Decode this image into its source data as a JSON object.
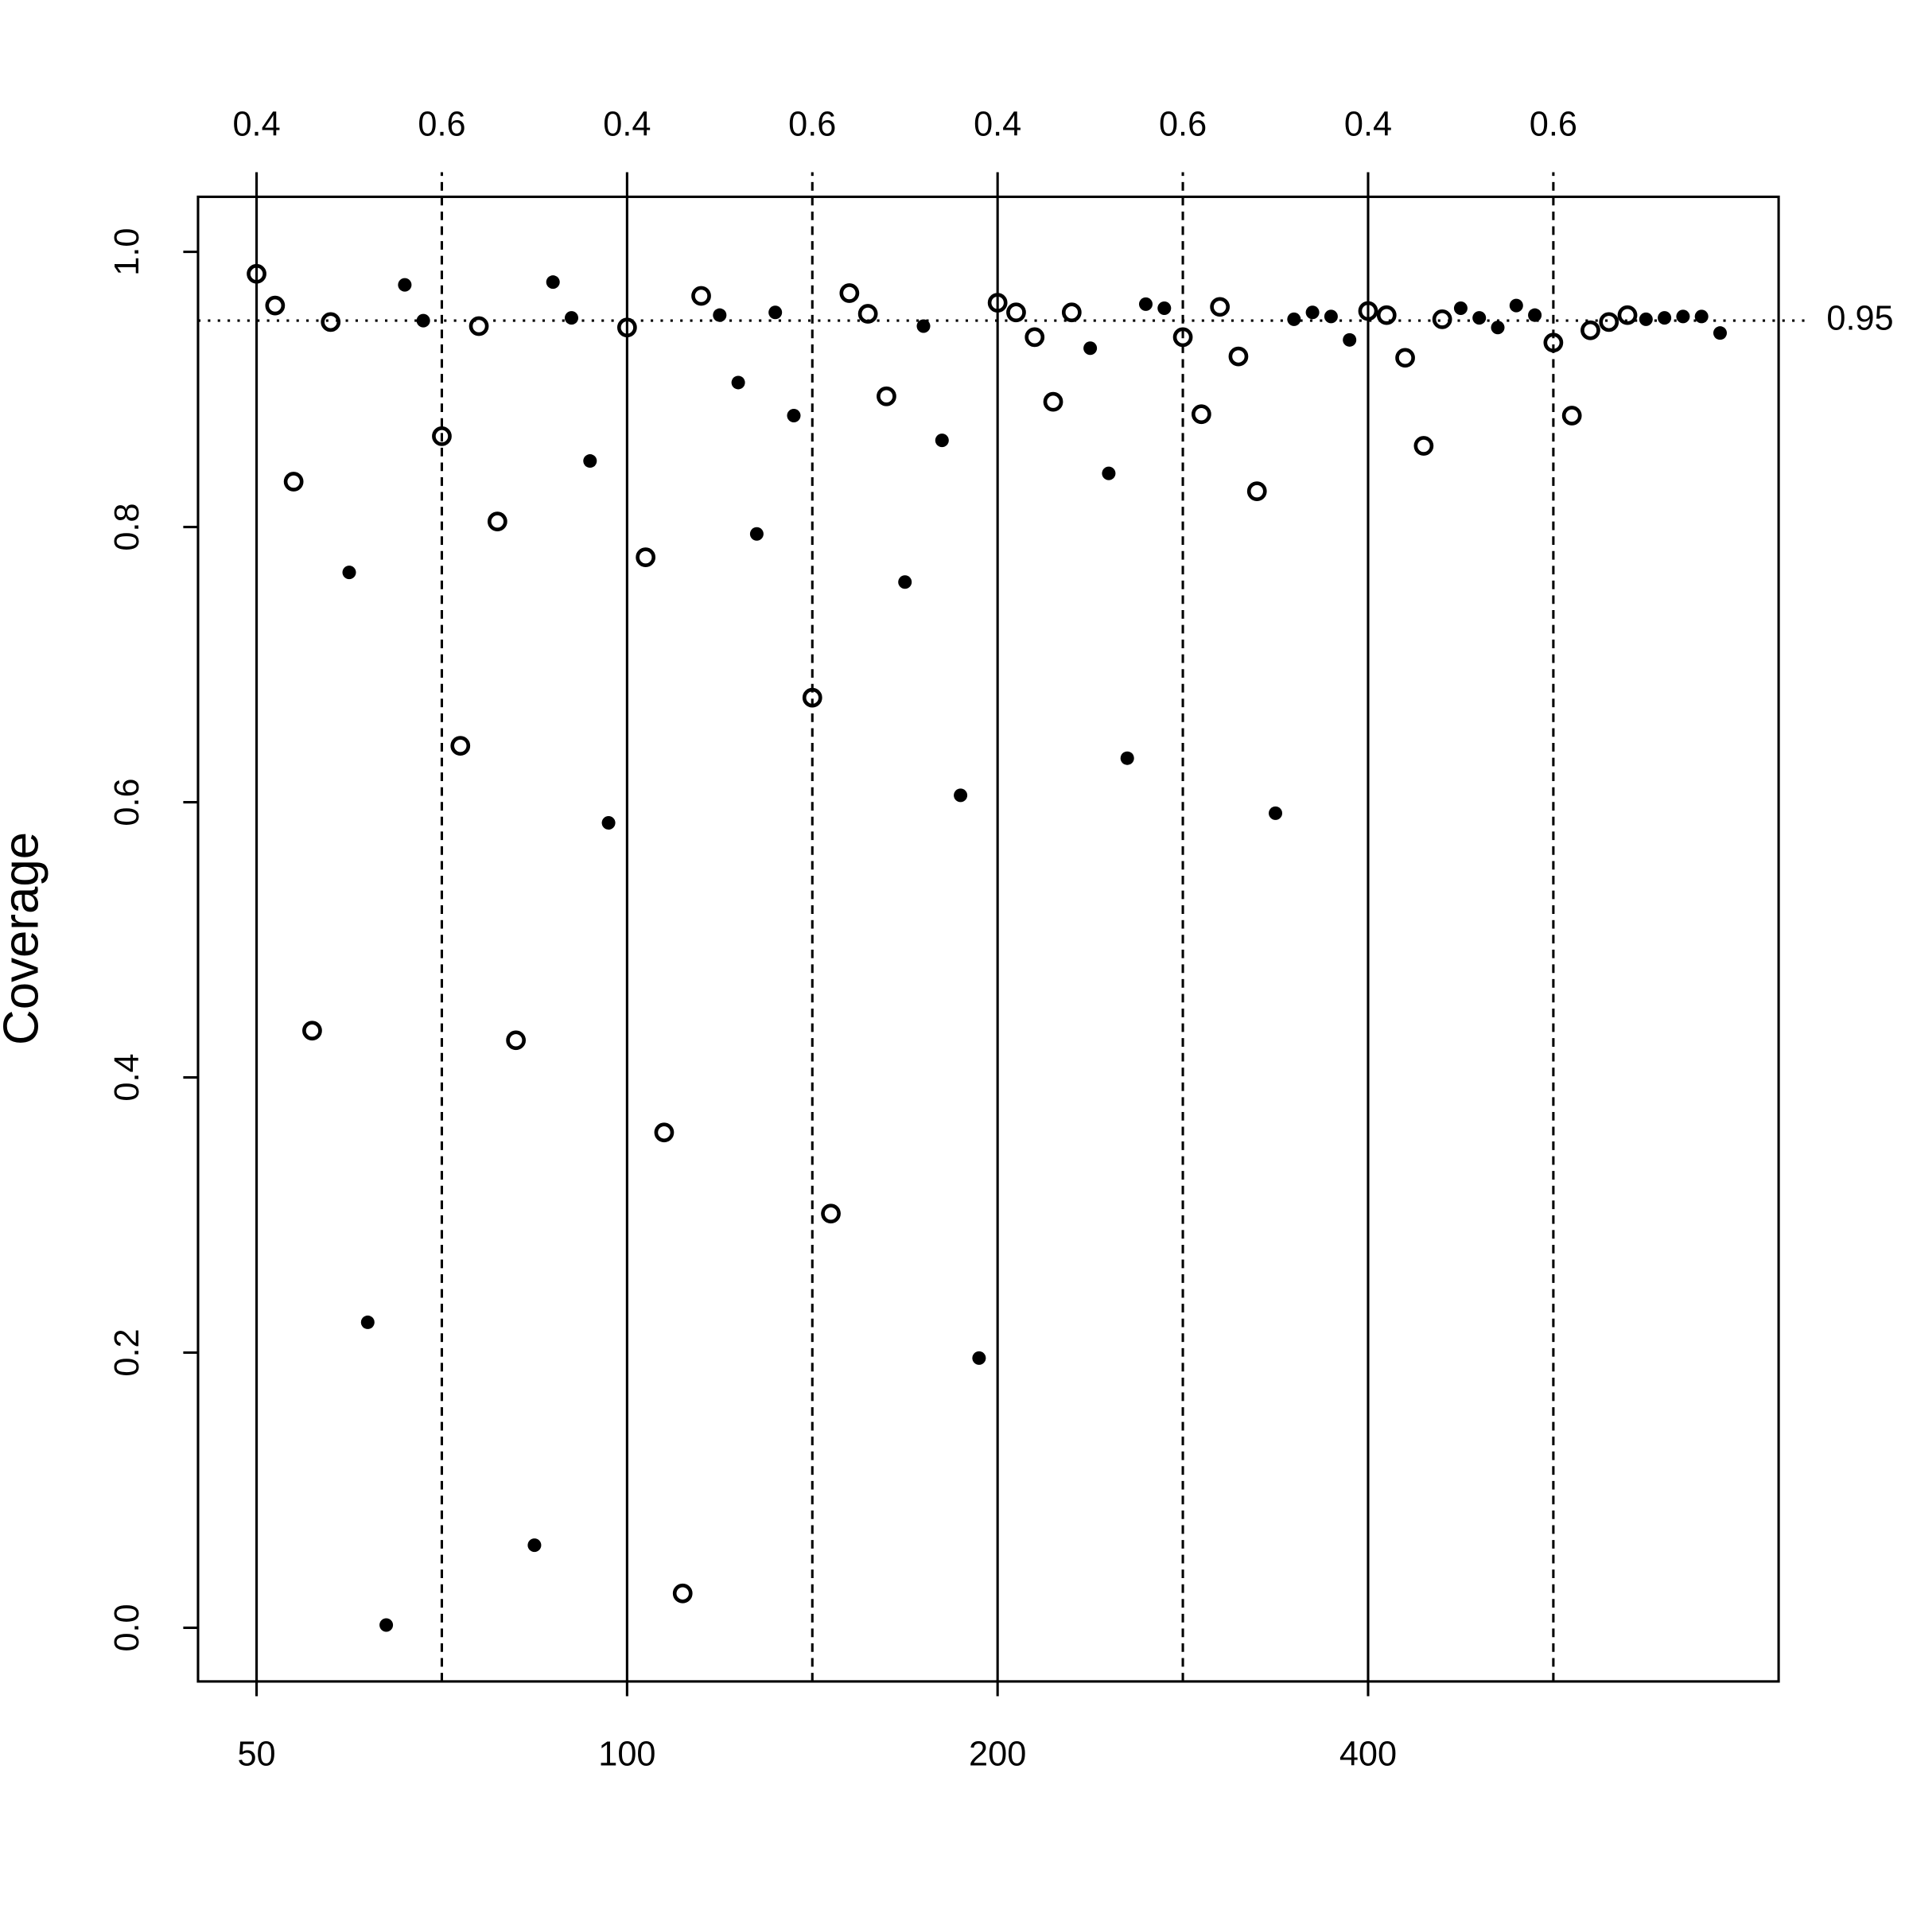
{
  "chart_data": {
    "type": "scatter",
    "ylabel": "Coverage",
    "xlim": [
      -2.16,
      83.16
    ],
    "ylim": [
      -0.039,
      1.04
    ],
    "xticks": [
      {
        "value": 1,
        "label": "50"
      },
      {
        "value": 21,
        "label": "100"
      },
      {
        "value": 41,
        "label": "200"
      },
      {
        "value": 61,
        "label": "400"
      }
    ],
    "x2ticks": [
      {
        "value": 1,
        "label": "0.4"
      },
      {
        "value": 11,
        "label": "0.6"
      },
      {
        "value": 21,
        "label": "0.4"
      },
      {
        "value": 31,
        "label": "0.6"
      },
      {
        "value": 41,
        "label": "0.4"
      },
      {
        "value": 51,
        "label": "0.6"
      },
      {
        "value": 61,
        "label": "0.4"
      },
      {
        "value": 71,
        "label": "0.6"
      }
    ],
    "yticks": [
      {
        "value": 0,
        "label": "0.0"
      },
      0.2,
      0.4,
      0.6,
      0.8,
      {
        "value": 1,
        "label": "1.0"
      }
    ],
    "hline": 0.95,
    "series": [
      {
        "color": "#000000",
        "marker": "open",
        "x": [
          1,
          2,
          3,
          4,
          5,
          11,
          12,
          13,
          14,
          15,
          21,
          22,
          23,
          24,
          25,
          31,
          32,
          33,
          34,
          35,
          41,
          42,
          43,
          44,
          45,
          51,
          52,
          53,
          54,
          55,
          61,
          62,
          63,
          64,
          65,
          71,
          72,
          73,
          74,
          75
        ],
        "values": [
          0.984,
          0.961,
          0.833,
          0.434,
          0.949,
          0.866,
          0.641,
          0.946,
          0.804,
          0.427,
          0.945,
          0.778,
          0.36,
          0.025,
          0.968,
          0.676,
          0.301,
          0.97,
          0.955,
          0.895,
          0.963,
          0.956,
          0.938,
          0.891,
          0.956,
          0.938,
          0.882,
          0.96,
          0.924,
          0.826,
          0.957,
          0.954,
          0.923,
          0.859,
          0.951,
          0.934,
          0.881,
          0.943,
          0.949,
          0.954
        ]
      },
      {
        "color": "#000000",
        "marker": "filled",
        "x": [
          6,
          7,
          8,
          9,
          10,
          16,
          17,
          18,
          19,
          20,
          26,
          27,
          28,
          29,
          30,
          36,
          37,
          38,
          39,
          40,
          46,
          47,
          48,
          49,
          50,
          56,
          57,
          58,
          59,
          60,
          66,
          67,
          68,
          69,
          70,
          76,
          77,
          78,
          79,
          80
        ],
        "values": [
          0.767,
          0.222,
          0.002,
          0.976,
          0.95,
          0.06,
          0.978,
          0.952,
          0.848,
          0.585,
          0.954,
          0.905,
          0.795,
          0.956,
          0.881,
          0.76,
          0.946,
          0.863,
          0.605,
          0.196,
          0.93,
          0.839,
          0.632,
          0.962,
          0.959,
          0.592,
          0.951,
          0.956,
          0.953,
          0.936,
          0.959,
          0.952,
          0.945,
          0.961,
          0.954,
          0.951,
          0.952,
          0.953,
          0.953,
          0.941
        ]
      }
    ]
  }
}
